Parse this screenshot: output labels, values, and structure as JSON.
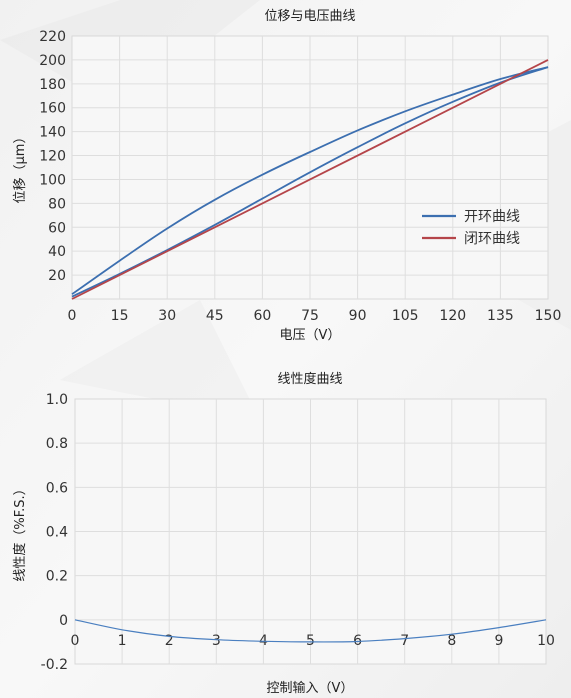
{
  "chart_data": [
    {
      "type": "line",
      "title": "位移与电压曲线",
      "xlabel": "电压（V）",
      "ylabel": "位移（μm）",
      "xlim": [
        0,
        150
      ],
      "ylim": [
        0,
        220
      ],
      "xticks": [
        0,
        15,
        30,
        45,
        60,
        75,
        90,
        105,
        120,
        135,
        150
      ],
      "yticks": [
        20,
        40,
        60,
        80,
        100,
        120,
        140,
        160,
        180,
        200,
        220
      ],
      "grid": true,
      "legend_position": "right-middle",
      "series": [
        {
          "name": "开环曲线",
          "color": "#3c6fb0",
          "kind": "hysteresis",
          "ascending": {
            "x": [
              0,
              15,
              30,
              45,
              60,
              75,
              90,
              105,
              120,
              135,
              150
            ],
            "y": [
              2,
              21,
              41,
              62,
              84,
              106,
              127,
              147,
              165,
              181,
              194
            ]
          },
          "descending": {
            "x": [
              150,
              135,
              120,
              105,
              90,
              75,
              60,
              45,
              30,
              15,
              0
            ],
            "y": [
              194,
              184,
              171,
              157,
              141,
              123,
              104,
              83,
              59,
              32,
              4
            ]
          }
        },
        {
          "name": "闭环曲线",
          "color": "#b5454a",
          "kind": "line",
          "x": [
            0,
            150
          ],
          "y": [
            0,
            200
          ]
        }
      ]
    },
    {
      "type": "line",
      "title": "线性度曲线",
      "xlabel": "控制输入（V）",
      "ylabel": "线性度（%F.S.）",
      "xlim": [
        0,
        10
      ],
      "ylim": [
        -0.2,
        1.0
      ],
      "xticks": [
        0,
        1,
        2,
        3,
        4,
        5,
        6,
        7,
        8,
        9,
        10
      ],
      "yticks": [
        -0.2,
        0,
        0.2,
        0.4,
        0.6,
        0.8,
        1.0
      ],
      "ytick_labels": [
        "-0.2",
        "0",
        "0.2",
        "0.4",
        "0.6",
        "0.8",
        "1.0"
      ],
      "grid": true,
      "series": [
        {
          "color": "#4a7fc0",
          "x": [
            0,
            1,
            2,
            3,
            4,
            5,
            6,
            7,
            8,
            9,
            10
          ],
          "y": [
            0.0,
            -0.045,
            -0.075,
            -0.09,
            -0.097,
            -0.1,
            -0.098,
            -0.085,
            -0.065,
            -0.035,
            0.0
          ]
        }
      ]
    }
  ]
}
